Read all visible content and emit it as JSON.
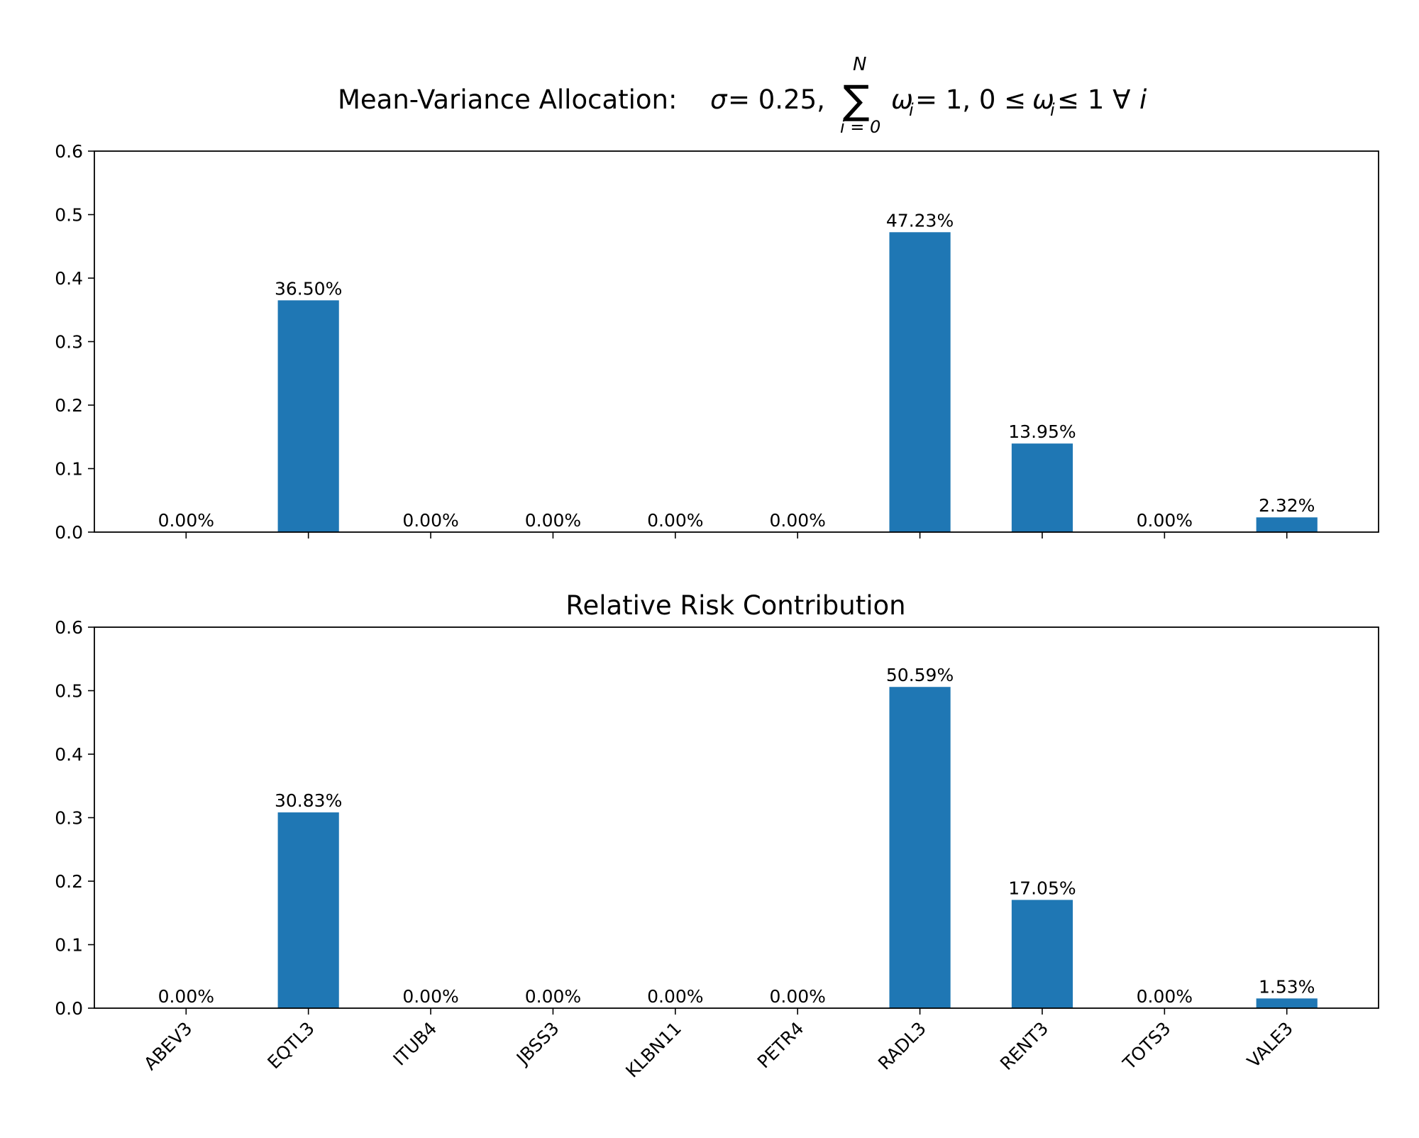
{
  "figure": {
    "bar_color": "#1f77b4",
    "title_parts": {
      "prefix": "Mean-Variance Allocation: ",
      "sigma": "σ",
      "sigma_value": " = 0.25, ",
      "sum_symbol": "∑",
      "sum_upper": "N",
      "sum_lower": "i = 0",
      "constraint_omega": "ω",
      "constraint_sub": "i",
      "constraint_mid": " = 1, 0 ≤ ",
      "constraint_omega2": "ω",
      "constraint_sub2": "i",
      "constraint_end": " ≤ 1 ∀ ",
      "constraint_i": "i"
    }
  },
  "chart_data": [
    {
      "type": "bar",
      "title": "Mean-Variance Allocation: σ = 0.25, ∑_{i=0}^{N} ω_i = 1, 0 ≤ ω_i ≤ 1 ∀ i",
      "categories": [
        "ABEV3",
        "EQTL3",
        "ITUB4",
        "JBSS3",
        "KLBN11",
        "PETR4",
        "RADL3",
        "RENT3",
        "TOTS3",
        "VALE3"
      ],
      "values": [
        0.0,
        0.365,
        0.0,
        0.0,
        0.0,
        0.0,
        0.4723,
        0.1395,
        0.0,
        0.0232
      ],
      "data_labels": [
        "0.00%",
        "36.50%",
        "0.00%",
        "0.00%",
        "0.00%",
        "0.00%",
        "47.23%",
        "13.95%",
        "0.00%",
        "2.32%"
      ],
      "ylim": [
        0,
        0.6
      ],
      "yticks": [
        "0.0",
        "0.1",
        "0.2",
        "0.3",
        "0.4",
        "0.5",
        "0.6"
      ],
      "xlabel": "",
      "ylabel": "",
      "show_category_labels": false
    },
    {
      "type": "bar",
      "title": "Relative Risk Contribution",
      "categories": [
        "ABEV3",
        "EQTL3",
        "ITUB4",
        "JBSS3",
        "KLBN11",
        "PETR4",
        "RADL3",
        "RENT3",
        "TOTS3",
        "VALE3"
      ],
      "values": [
        0.0,
        0.3083,
        0.0,
        0.0,
        0.0,
        0.0,
        0.5059,
        0.1705,
        0.0,
        0.0153
      ],
      "data_labels": [
        "0.00%",
        "30.83%",
        "0.00%",
        "0.00%",
        "0.00%",
        "0.00%",
        "50.59%",
        "17.05%",
        "0.00%",
        "1.53%"
      ],
      "ylim": [
        0,
        0.6
      ],
      "yticks": [
        "0.0",
        "0.1",
        "0.2",
        "0.3",
        "0.4",
        "0.5",
        "0.6"
      ],
      "xlabel": "",
      "ylabel": "",
      "show_category_labels": true
    }
  ]
}
